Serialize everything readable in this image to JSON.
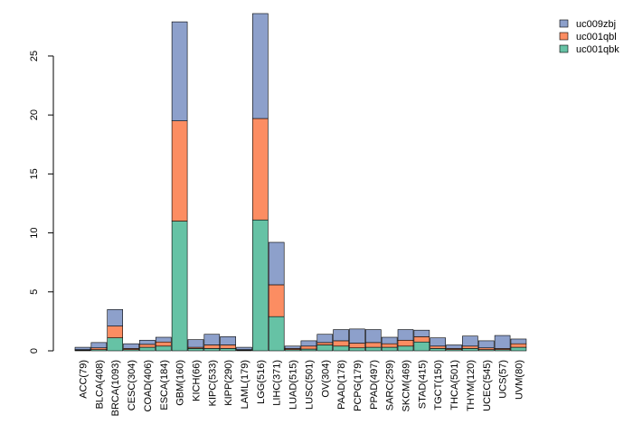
{
  "chart_data": {
    "type": "bar",
    "stacked": true,
    "title": "",
    "xlabel": "",
    "ylabel": "",
    "ylim": [
      0,
      28.6
    ],
    "yticks": [
      0,
      5,
      10,
      15,
      20,
      25
    ],
    "grid": false,
    "legend_position": "top-right",
    "categories": [
      "ACC(79)",
      "BLCA(408)",
      "BRCA(1093)",
      "CESC(304)",
      "COAD(406)",
      "ESCA(184)",
      "GBM(160)",
      "KICH(66)",
      "KIPC(533)",
      "KIPP(290)",
      "LAML(179)",
      "LGG(516)",
      "LIHC(371)",
      "LUAD(515)",
      "LUSC(501)",
      "OV(304)",
      "PAAD(178)",
      "PCPG(179)",
      "PPAD(497)",
      "SARC(259)",
      "SKCM(469)",
      "STAD(415)",
      "TGCT(150)",
      "THCA(501)",
      "THYM(120)",
      "UCEC(545)",
      "UCS(57)",
      "UVM(80)"
    ],
    "series": [
      {
        "name": "uc001qbk",
        "color": "#66c2a5",
        "values": [
          0.05,
          0.1,
          1.1,
          0.1,
          0.3,
          0.4,
          11.0,
          0.2,
          0.2,
          0.2,
          0.05,
          11.1,
          2.9,
          0.1,
          0.15,
          0.5,
          0.4,
          0.25,
          0.3,
          0.3,
          0.4,
          0.75,
          0.2,
          0.1,
          0.2,
          0.1,
          0.1,
          0.3
        ]
      },
      {
        "name": "uc001qbl",
        "color": "#fc8d62",
        "values": [
          0.05,
          0.15,
          1.0,
          0.1,
          0.25,
          0.35,
          8.5,
          0.1,
          0.3,
          0.3,
          0.05,
          8.6,
          2.7,
          0.1,
          0.25,
          0.2,
          0.45,
          0.4,
          0.4,
          0.3,
          0.5,
          0.45,
          0.2,
          0.1,
          0.2,
          0.15,
          0.1,
          0.3
        ]
      },
      {
        "name": "uc009zbj",
        "color": "#8da0cb",
        "values": [
          0.2,
          0.45,
          1.4,
          0.4,
          0.35,
          0.4,
          8.4,
          0.65,
          0.9,
          0.7,
          0.2,
          8.9,
          3.6,
          0.2,
          0.45,
          0.7,
          0.95,
          1.2,
          1.1,
          0.55,
          0.9,
          0.55,
          0.7,
          0.3,
          0.85,
          0.6,
          1.1,
          0.4
        ]
      }
    ]
  }
}
